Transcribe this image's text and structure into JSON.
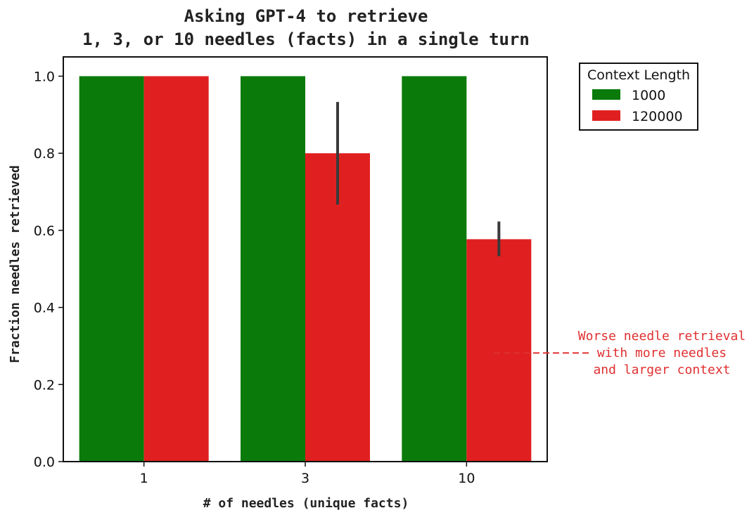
{
  "chart_data": {
    "type": "bar",
    "title_lines": [
      "Asking GPT-4 to retrieve",
      "1, 3, or 10 needles (facts) in a single turn"
    ],
    "xlabel": "# of needles (unique facts)",
    "ylabel": "Fraction needles retrieved",
    "categories": [
      "1",
      "3",
      "10"
    ],
    "ylim": [
      0,
      1.05
    ],
    "yticks": [
      0.0,
      0.2,
      0.4,
      0.6,
      0.8,
      1.0
    ],
    "ytick_labels": [
      "0.0",
      "0.2",
      "0.4",
      "0.6",
      "0.8",
      "1.0"
    ],
    "series": [
      {
        "name": "1000",
        "color": "#0a7a0a",
        "values": [
          1.0,
          1.0,
          1.0
        ],
        "err_low": [
          null,
          null,
          null
        ],
        "err_high": [
          null,
          null,
          null
        ]
      },
      {
        "name": "120000",
        "color": "#e02020",
        "values": [
          1.0,
          0.8,
          0.577
        ],
        "err_low": [
          null,
          0.667,
          0.533
        ],
        "err_high": [
          null,
          0.933,
          0.623
        ]
      }
    ],
    "legend": {
      "title": "Context Length",
      "placement": "outside-top-right"
    },
    "annotation": {
      "lines": [
        "Worse needle retrieval",
        "with more needles",
        "and larger context"
      ],
      "color": "#e03030",
      "pointer_y": 0.3
    },
    "grid": false
  }
}
